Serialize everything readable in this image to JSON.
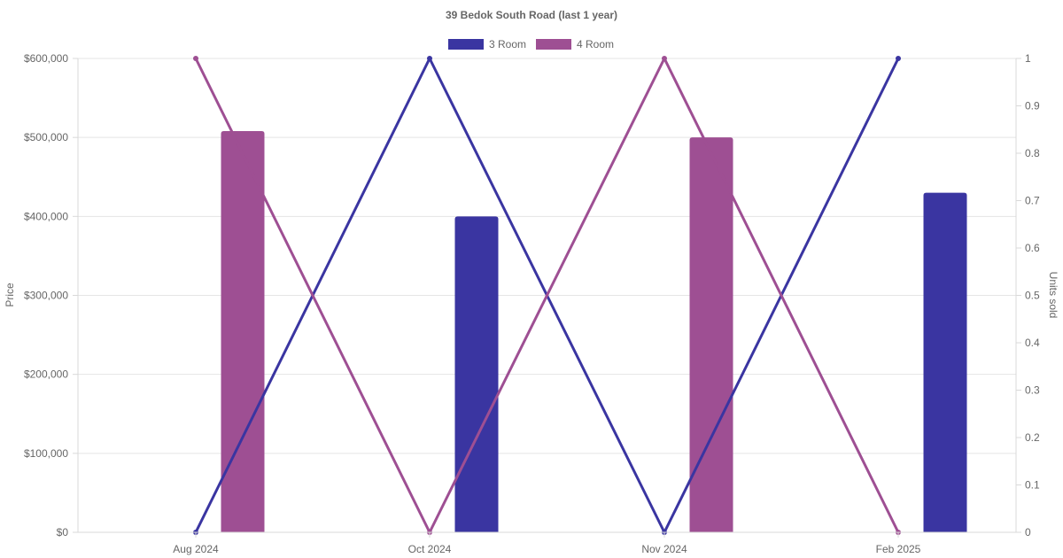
{
  "chart_data": {
    "type": "bar",
    "title": "39 Bedok South Road (last 1 year)",
    "categories": [
      "Aug 2024",
      "Oct 2024",
      "Nov 2024",
      "Feb 2025"
    ],
    "series": [
      {
        "name": "3 Room",
        "color": "#3a35a1",
        "price_values": [
          null,
          400000,
          null,
          430000
        ],
        "units_sold": [
          0,
          1,
          0,
          1
        ]
      },
      {
        "name": "4 Room",
        "color": "#9e4f93",
        "price_values": [
          508000,
          null,
          500000,
          null
        ],
        "units_sold": [
          1,
          0,
          1,
          0
        ]
      }
    ],
    "y_left": {
      "label": "Price",
      "range": [
        0,
        600000
      ],
      "ticks": [
        "$0",
        "$100,000",
        "$200,000",
        "$300,000",
        "$400,000",
        "$500,000",
        "$600,000"
      ]
    },
    "y_right": {
      "label": "Units sold",
      "range": [
        0,
        1
      ],
      "ticks": [
        "0",
        "0.1",
        "0.2",
        "0.3",
        "0.4",
        "0.5",
        "0.6",
        "0.7",
        "0.8",
        "0.9",
        "1"
      ]
    },
    "legend_position": "top",
    "grid": true
  }
}
